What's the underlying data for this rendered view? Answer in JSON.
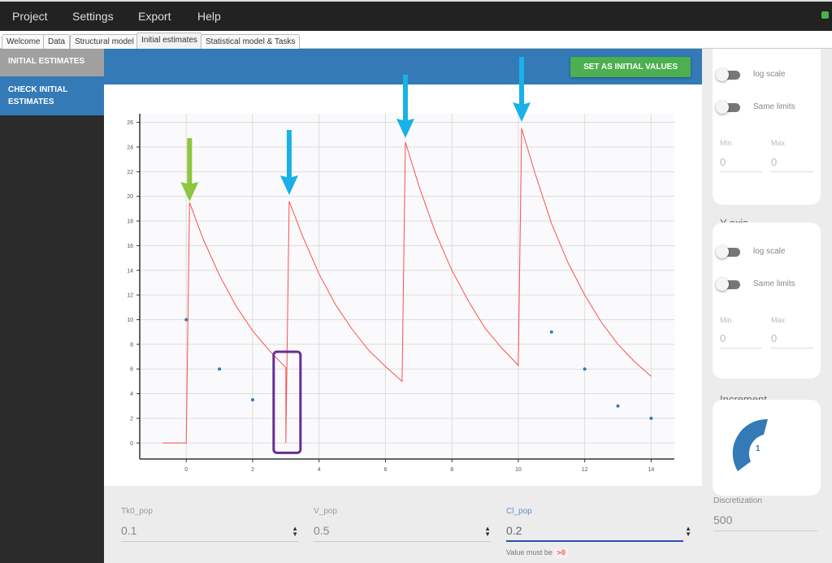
{
  "menu": [
    "Project",
    "Settings",
    "Export",
    "Help"
  ],
  "tabs": [
    "Welcome",
    "Data",
    "Structural model",
    "Initial estimates",
    "Statistical model & Tasks"
  ],
  "active_tab": "Initial estimates",
  "sidebar": {
    "items": [
      {
        "label": "INITIAL ESTIMATES"
      },
      {
        "label": "CHECK INITIAL ESTIMATES"
      }
    ]
  },
  "header": {
    "button": "SET AS INITIAL VALUES"
  },
  "params": [
    {
      "label": "Tk0_pop",
      "value": "0.1"
    },
    {
      "label": "V_pop",
      "value": "0.5"
    },
    {
      "label": "Cl_pop",
      "value": "0.2",
      "hint": "Value must be",
      "hint_code": ">0"
    }
  ],
  "right": {
    "xaxis": {
      "log_label": "log scale",
      "same_label": "Same limits",
      "min_label": "Min",
      "max_label": "Max",
      "min": "0",
      "max": "0"
    },
    "yaxis": {
      "title": "Y-axis",
      "log_label": "log scale",
      "same_label": "Same limits",
      "min_label": "Min",
      "max_label": "Max",
      "min": "0",
      "max": "0"
    },
    "increment": {
      "title": "Increment",
      "value": "1"
    },
    "discretization": {
      "label": "Discretization",
      "value": "500"
    }
  },
  "colors": {
    "accent": "#337ab7",
    "button": "#4caf50",
    "curve": "#ff4d4d",
    "obs": "#337ab7",
    "arrow_green": "#8dc63f",
    "arrow_blue": "#1ab0e8",
    "highlight": "#6a2c91"
  },
  "chart_data": {
    "type": "line",
    "xlim": [
      -1.4,
      14.7
    ],
    "ylim": [
      -1.3,
      26.7
    ],
    "xticks": [
      "0",
      "2",
      "4",
      "6",
      "8",
      "10",
      "12",
      "14"
    ],
    "yticks": [
      "0",
      "2",
      "4",
      "6",
      "8",
      "10",
      "12",
      "14",
      "16",
      "18",
      "20",
      "22",
      "24",
      "26"
    ],
    "grid": true,
    "series": [
      {
        "kind": "prediction",
        "points": [
          [
            -0.7,
            0
          ],
          [
            0,
            0
          ],
          [
            0.1,
            19.5
          ],
          [
            0.5,
            16.6
          ],
          [
            1,
            13.6
          ],
          [
            1.5,
            11.1
          ],
          [
            2,
            9.1
          ],
          [
            2.5,
            7.5
          ],
          [
            3,
            6.1
          ],
          [
            3,
            0
          ],
          [
            3.1,
            19.6
          ],
          [
            3.5,
            16.8
          ],
          [
            4,
            13.7
          ],
          [
            4.5,
            11.2
          ],
          [
            5,
            9.2
          ],
          [
            5.5,
            7.5
          ],
          [
            6,
            6.2
          ],
          [
            6.5,
            5.0
          ],
          [
            6.6,
            24.4
          ],
          [
            7,
            20.9
          ],
          [
            7.5,
            17.1
          ],
          [
            8,
            14.0
          ],
          [
            8.5,
            11.5
          ],
          [
            9,
            9.3
          ],
          [
            9.5,
            7.7
          ],
          [
            10,
            6.3
          ],
          [
            10.1,
            25.5
          ],
          [
            10.5,
            21.9
          ],
          [
            11,
            17.8
          ],
          [
            11.5,
            14.6
          ],
          [
            12,
            12.0
          ],
          [
            12.5,
            9.8
          ],
          [
            13,
            8.0
          ],
          [
            13.5,
            6.6
          ],
          [
            14,
            5.4
          ]
        ]
      },
      {
        "kind": "observations",
        "points": [
          [
            0,
            10
          ],
          [
            1,
            6
          ],
          [
            2,
            3.5
          ],
          [
            11,
            9
          ],
          [
            12,
            6
          ],
          [
            13,
            3
          ],
          [
            14,
            2
          ]
        ]
      }
    ]
  }
}
